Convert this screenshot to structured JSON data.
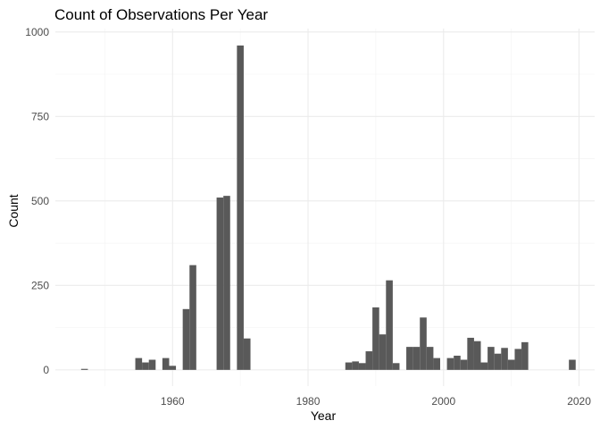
{
  "chart_data": {
    "type": "bar",
    "title": "Count of Observations Per Year",
    "xlabel": "Year",
    "ylabel": "Count",
    "xlim": [
      1942.7,
      2022.3
    ],
    "ylim": [
      -48,
      1010
    ],
    "x_ticks": [
      1960,
      1980,
      2000,
      2020
    ],
    "x_minor_ticks": [
      1950,
      1970,
      1990,
      2010
    ],
    "y_ticks": [
      0,
      250,
      500,
      750,
      1000
    ],
    "y_minor_ticks": [
      125,
      375,
      625,
      875
    ],
    "grid": true,
    "legend": "none",
    "bar_color": "#595959",
    "bar_width_years": 1,
    "x": [
      1947,
      1955,
      1956,
      1957,
      1959,
      1960,
      1962,
      1963,
      1967,
      1968,
      1970,
      1971,
      1986,
      1987,
      1988,
      1989,
      1990,
      1991,
      1992,
      1993,
      1995,
      1996,
      1997,
      1998,
      1999,
      2001,
      2002,
      2003,
      2004,
      2005,
      2006,
      2007,
      2008,
      2009,
      2010,
      2011,
      2012,
      2019
    ],
    "values": [
      3,
      35,
      22,
      30,
      35,
      12,
      180,
      310,
      510,
      515,
      960,
      93,
      22,
      25,
      20,
      55,
      185,
      105,
      265,
      20,
      68,
      68,
      155,
      68,
      35,
      35,
      42,
      30,
      95,
      85,
      22,
      68,
      48,
      65,
      30,
      62,
      82,
      30
    ]
  },
  "colors": {
    "background": "#ffffff",
    "bar": "#595959",
    "grid_major": "#ebebeb",
    "grid_minor": "#f2f2f2",
    "tick_text": "#4d4d4d"
  }
}
